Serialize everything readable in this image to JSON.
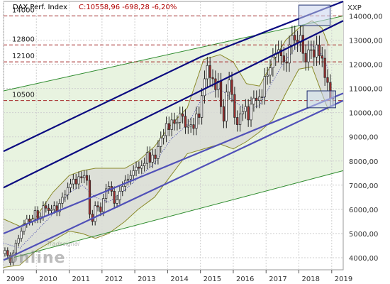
{
  "header": {
    "instrument": "DAX Perf. Index",
    "quote": "C:10558,96 -698,28 -6,20%"
  },
  "right_top_label": "XXP",
  "watermark": {
    "small": "Tradesignal",
    "big": "online"
  },
  "colors": {
    "background": "#ffffff",
    "plot_background": "#ffffff",
    "grid": "#cfcfcf",
    "channel_fill": "#e8f3e0",
    "channel_line": "#2e8b2e",
    "band_fill": "#d9dbd6",
    "band_line": "#8a8a2a",
    "trend_dark": "#0a0a80",
    "trend_light": "#5050b8",
    "resistance": "#a52a2a",
    "ma_dotted": "#3a3aaa",
    "candle_up": "#ffffff",
    "candle_down": "#a03030",
    "candle_wick": "#222222",
    "highlight_fill": "#c8d4ec",
    "highlight_stroke": "#1f2f6f"
  },
  "chart_data": {
    "type": "candlestick",
    "x_axis": {
      "ticks": [
        "2009",
        "2010",
        "2011",
        "2012",
        "2013",
        "2014",
        "2015",
        "2016",
        "2017",
        "2018",
        "2019"
      ],
      "range": [
        2009.0,
        2019.35
      ]
    },
    "y_axis": {
      "range": [
        3500,
        14600
      ],
      "ticks": [
        4000,
        5000,
        6000,
        7000,
        8000,
        9000,
        10000,
        11000,
        12000,
        13000,
        14000
      ],
      "tick_labels": [
        "4000,00",
        "5000,00",
        "6000,00",
        "7000,00",
        "8000,00",
        "9000,00",
        "10000,00",
        "11000,00",
        "12000,00",
        "13000,00",
        "14000,00"
      ]
    },
    "horizontal_levels": [
      {
        "label": "14000",
        "value": 14000
      },
      {
        "label": "12800",
        "value": 12800
      },
      {
        "label": "12100",
        "value": 12100
      },
      {
        "label": "10500",
        "value": 10500
      }
    ],
    "monthly_closes": [
      4300,
      4100,
      3800,
      4200,
      4600,
      4800,
      5100,
      5400,
      5600,
      5500,
      5600,
      5950,
      5600,
      5700,
      6150,
      6050,
      5950,
      6000,
      6150,
      5900,
      6250,
      6500,
      6600,
      6900,
      7050,
      7250,
      7050,
      7350,
      7300,
      7400,
      7200,
      5800,
      5500,
      6150,
      6100,
      5900,
      6450,
      6850,
      6950,
      6750,
      6250,
      6400,
      6750,
      6950,
      7200,
      7250,
      7400,
      7600,
      7750,
      7700,
      7800,
      7900,
      8350,
      7950,
      8250,
      8100,
      8600,
      8950,
      9050,
      9550,
      9300,
      9700,
      9550,
      9600,
      9950,
      9850,
      9400,
      9450,
      9500,
      9350,
      9950,
      9800,
      10700,
      11400,
      11950,
      11450,
      11400,
      10950,
      11300,
      10250,
      9650,
      10850,
      11350,
      10750,
      9800,
      9500,
      9950,
      10050,
      10250,
      9700,
      10350,
      10600,
      10500,
      10650,
      10650,
      11500,
      11550,
      11850,
      12300,
      12450,
      12600,
      12350,
      12100,
      12050,
      12800,
      13200,
      13000,
      12900,
      13200,
      12450,
      12100,
      12600,
      12600,
      12300,
      12800,
      12350,
      12250,
      11450,
      11250,
      10600,
      10560
    ],
    "channels": {
      "green_upper": [
        [
          2009.0,
          10900
        ],
        [
          2019.35,
          14000
        ]
      ],
      "green_lower": [
        [
          2009.0,
          3900
        ],
        [
          2019.35,
          7600
        ]
      ],
      "blue_dark_1": [
        [
          2009.0,
          8400
        ],
        [
          2015.0,
          12300
        ],
        [
          2019.35,
          14600
        ]
      ],
      "blue_dark_2": [
        [
          2009.0,
          6900
        ],
        [
          2019.35,
          13800
        ]
      ],
      "blue_light_1": [
        [
          2009.0,
          5000
        ],
        [
          2019.35,
          10800
        ]
      ],
      "blue_light_2": [
        [
          2009.0,
          3900
        ],
        [
          2019.35,
          10500
        ]
      ]
    },
    "bollinger_upper": [
      [
        2009.0,
        5600
      ],
      [
        2009.5,
        5300
      ],
      [
        2010.0,
        5700
      ],
      [
        2010.5,
        6700
      ],
      [
        2011.0,
        7400
      ],
      [
        2011.4,
        7600
      ],
      [
        2011.8,
        7700
      ],
      [
        2012.2,
        7700
      ],
      [
        2012.7,
        7700
      ],
      [
        2013.1,
        8000
      ],
      [
        2013.6,
        8600
      ],
      [
        2014.1,
        9500
      ],
      [
        2014.6,
        10200
      ],
      [
        2015.1,
        12200
      ],
      [
        2015.6,
        12400
      ],
      [
        2016.0,
        12100
      ],
      [
        2016.4,
        11200
      ],
      [
        2016.8,
        11100
      ],
      [
        2017.2,
        12100
      ],
      [
        2017.6,
        13000
      ],
      [
        2018.0,
        13500
      ],
      [
        2018.4,
        13800
      ],
      [
        2018.7,
        13500
      ],
      [
        2018.9,
        12800
      ]
    ],
    "bollinger_lower": [
      [
        2009.0,
        3600
      ],
      [
        2009.5,
        3700
      ],
      [
        2010.0,
        4300
      ],
      [
        2010.5,
        4700
      ],
      [
        2011.0,
        5100
      ],
      [
        2011.4,
        5000
      ],
      [
        2011.8,
        4800
      ],
      [
        2012.2,
        5000
      ],
      [
        2012.7,
        5500
      ],
      [
        2013.1,
        6000
      ],
      [
        2013.6,
        6500
      ],
      [
        2014.1,
        7400
      ],
      [
        2014.6,
        8300
      ],
      [
        2015.1,
        8500
      ],
      [
        2015.6,
        8700
      ],
      [
        2016.0,
        8500
      ],
      [
        2016.4,
        8800
      ],
      [
        2016.8,
        9200
      ],
      [
        2017.2,
        9700
      ],
      [
        2017.6,
        10800
      ],
      [
        2018.0,
        11800
      ],
      [
        2018.4,
        11900
      ],
      [
        2018.7,
        10800
      ],
      [
        2018.9,
        10100
      ]
    ],
    "moving_average": [
      [
        2009.0,
        4600
      ],
      [
        2009.5,
        4400
      ],
      [
        2010.0,
        5100
      ],
      [
        2010.5,
        5800
      ],
      [
        2011.0,
        6700
      ],
      [
        2011.4,
        7000
      ],
      [
        2011.8,
        6500
      ],
      [
        2012.2,
        6300
      ],
      [
        2012.7,
        6800
      ],
      [
        2013.1,
        7300
      ],
      [
        2013.6,
        7900
      ],
      [
        2014.1,
        8900
      ],
      [
        2014.6,
        9500
      ],
      [
        2015.1,
        10700
      ],
      [
        2015.6,
        11000
      ],
      [
        2016.0,
        10500
      ],
      [
        2016.4,
        10100
      ],
      [
        2016.8,
        10300
      ],
      [
        2017.2,
        11300
      ],
      [
        2017.6,
        12200
      ],
      [
        2018.0,
        12800
      ],
      [
        2018.4,
        12800
      ],
      [
        2018.7,
        12400
      ],
      [
        2018.9,
        11800
      ]
    ],
    "highlight_boxes": [
      {
        "x": [
          2018.0,
          2018.95
        ],
        "y": [
          13600,
          14450
        ]
      },
      {
        "x": [
          2018.25,
          2019.12
        ],
        "y": [
          10200,
          10900
        ]
      }
    ]
  }
}
